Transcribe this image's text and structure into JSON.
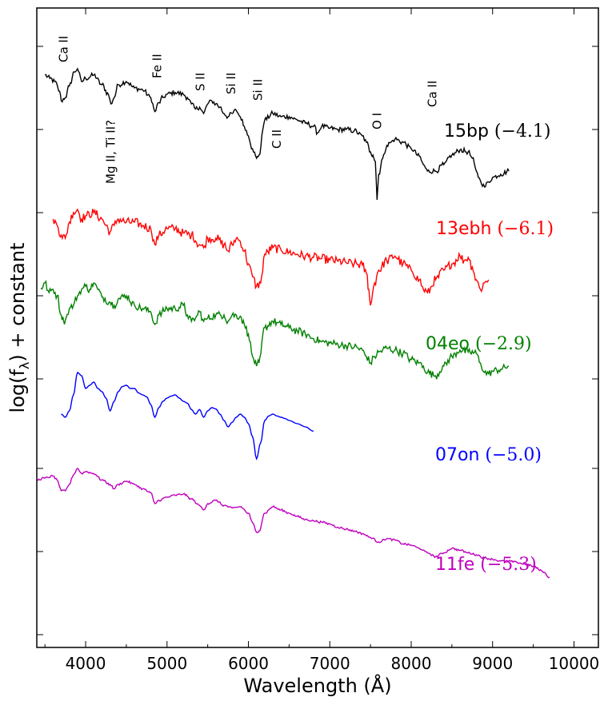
{
  "chart_data": {
    "type": "line",
    "title": "",
    "xlabel": "Wavelength (Å)",
    "ylabel": "log(f",
    "ylabel_sub": "λ",
    "ylabel_suffix": ") + constant",
    "xlim": [
      3400,
      10300
    ],
    "ylim": [
      0,
      1
    ],
    "y_ticks_labeled": false,
    "x_ticks": [
      {
        "value": 4000,
        "label": "4000"
      },
      {
        "value": 5000,
        "label": "5000"
      },
      {
        "value": 6000,
        "label": "6000"
      },
      {
        "value": 7000,
        "label": "7000"
      },
      {
        "value": 8000,
        "label": "8000"
      },
      {
        "value": 9000,
        "label": "9000"
      },
      {
        "value": 10000,
        "label": "10000"
      }
    ],
    "y_ticks": [
      0.02,
      0.15,
      0.28,
      0.42,
      0.55,
      0.68,
      0.81,
      0.94
    ],
    "series": [
      {
        "name": "15bp",
        "epoch": "(−4.1)",
        "color": "#000000",
        "x": [
          3500,
          3560,
          3620,
          3680,
          3700,
          3750,
          3800,
          3860,
          3900,
          3950,
          4000,
          4100,
          4200,
          4280,
          4310,
          4350,
          4400,
          4500,
          4600,
          4700,
          4800,
          4850,
          4900,
          4950,
          5000,
          5100,
          5200,
          5250,
          5300,
          5350,
          5400,
          5450,
          5500,
          5550,
          5600,
          5650,
          5700,
          5750,
          5800,
          5850,
          5900,
          5950,
          6000,
          6050,
          6100,
          6130,
          6200,
          6300,
          6400,
          6500,
          6600,
          6700,
          6800,
          6850,
          6900,
          7000,
          7100,
          7200,
          7300,
          7400,
          7450,
          7500,
          7530,
          7560,
          7580,
          7600,
          7650,
          7700,
          7750,
          7800,
          7900,
          8000,
          8100,
          8150,
          8200,
          8300,
          8400,
          8500,
          8600,
          8700,
          8750,
          8800,
          8850,
          8900,
          8950,
          9000,
          9100,
          9200
        ],
        "y": [
          0.895,
          0.89,
          0.885,
          0.87,
          0.855,
          0.86,
          0.878,
          0.9,
          0.905,
          0.885,
          0.89,
          0.895,
          0.88,
          0.865,
          0.85,
          0.86,
          0.88,
          0.885,
          0.875,
          0.872,
          0.86,
          0.838,
          0.852,
          0.86,
          0.865,
          0.868,
          0.865,
          0.86,
          0.85,
          0.842,
          0.845,
          0.835,
          0.85,
          0.855,
          0.85,
          0.845,
          0.835,
          0.83,
          0.835,
          0.84,
          0.83,
          0.815,
          0.8,
          0.78,
          0.765,
          0.77,
          0.825,
          0.835,
          0.83,
          0.83,
          0.825,
          0.82,
          0.815,
          0.805,
          0.815,
          0.812,
          0.81,
          0.81,
          0.808,
          0.8,
          0.79,
          0.775,
          0.77,
          0.76,
          0.7,
          0.74,
          0.765,
          0.785,
          0.79,
          0.795,
          0.79,
          0.78,
          0.768,
          0.755,
          0.745,
          0.745,
          0.755,
          0.77,
          0.778,
          0.775,
          0.765,
          0.745,
          0.73,
          0.72,
          0.728,
          0.735,
          0.74,
          0.745
        ]
      },
      {
        "name": "13ebh",
        "epoch": "(−6.1)",
        "color": "#ff0000",
        "x": [
          3600,
          3650,
          3700,
          3750,
          3800,
          3850,
          3900,
          3950,
          4000,
          4100,
          4200,
          4250,
          4300,
          4350,
          4400,
          4500,
          4600,
          4700,
          4800,
          4850,
          4900,
          5000,
          5100,
          5200,
          5300,
          5400,
          5450,
          5500,
          5600,
          5700,
          5750,
          5800,
          5850,
          5900,
          5950,
          6000,
          6050,
          6100,
          6150,
          6200,
          6300,
          6400,
          6500,
          6600,
          6700,
          6800,
          6900,
          7000,
          7100,
          7200,
          7300,
          7400,
          7450,
          7480,
          7500,
          7550,
          7600,
          7700,
          7800,
          7900,
          8000,
          8100,
          8150,
          8200,
          8300,
          8400,
          8500,
          8600,
          8650,
          8700,
          8750,
          8800,
          8850,
          8900,
          8950
        ],
        "y": [
          0.67,
          0.66,
          0.645,
          0.64,
          0.665,
          0.68,
          0.685,
          0.67,
          0.675,
          0.68,
          0.67,
          0.66,
          0.65,
          0.66,
          0.67,
          0.665,
          0.665,
          0.66,
          0.655,
          0.63,
          0.645,
          0.655,
          0.655,
          0.648,
          0.645,
          0.63,
          0.625,
          0.64,
          0.64,
          0.63,
          0.62,
          0.63,
          0.64,
          0.635,
          0.62,
          0.6,
          0.58,
          0.565,
          0.57,
          0.615,
          0.625,
          0.622,
          0.618,
          0.615,
          0.612,
          0.61,
          0.608,
          0.606,
          0.604,
          0.602,
          0.6,
          0.598,
          0.585,
          0.56,
          0.535,
          0.57,
          0.59,
          0.605,
          0.612,
          0.6,
          0.59,
          0.575,
          0.56,
          0.555,
          0.575,
          0.59,
          0.6,
          0.612,
          0.605,
          0.61,
          0.595,
          0.575,
          0.56,
          0.57,
          0.575
        ]
      },
      {
        "name": "04eo",
        "epoch": "(−2.9)",
        "color": "#008000",
        "x": [
          3450,
          3500,
          3550,
          3600,
          3650,
          3700,
          3730,
          3760,
          3800,
          3850,
          3900,
          3950,
          4000,
          4050,
          4100,
          4150,
          4200,
          4300,
          4350,
          4400,
          4500,
          4600,
          4700,
          4800,
          4850,
          4900,
          5000,
          5100,
          5200,
          5250,
          5300,
          5350,
          5400,
          5450,
          5500,
          5600,
          5700,
          5750,
          5800,
          5900,
          5950,
          6000,
          6050,
          6100,
          6130,
          6200,
          6300,
          6400,
          6500,
          6600,
          6700,
          6800,
          6900,
          7000,
          7100,
          7200,
          7300,
          7400,
          7450,
          7500,
          7550,
          7600,
          7700,
          7800,
          7900,
          8000,
          8100,
          8150,
          8200,
          8300,
          8400,
          8500,
          8600,
          8700,
          8800,
          8850,
          8900,
          8950,
          9000,
          9100,
          9200
        ],
        "y": [
          0.562,
          0.57,
          0.555,
          0.56,
          0.55,
          0.52,
          0.51,
          0.515,
          0.53,
          0.535,
          0.55,
          0.56,
          0.565,
          0.56,
          0.57,
          0.56,
          0.548,
          0.54,
          0.535,
          0.545,
          0.55,
          0.535,
          0.53,
          0.525,
          0.505,
          0.52,
          0.53,
          0.53,
          0.535,
          0.52,
          0.51,
          0.515,
          0.525,
          0.51,
          0.515,
          0.52,
          0.52,
          0.51,
          0.52,
          0.518,
          0.505,
          0.49,
          0.455,
          0.44,
          0.445,
          0.5,
          0.51,
          0.505,
          0.5,
          0.495,
          0.49,
          0.483,
          0.478,
          0.476,
          0.474,
          0.472,
          0.47,
          0.465,
          0.455,
          0.445,
          0.455,
          0.462,
          0.468,
          0.465,
          0.46,
          0.45,
          0.445,
          0.44,
          0.43,
          0.425,
          0.44,
          0.455,
          0.465,
          0.462,
          0.46,
          0.445,
          0.43,
          0.428,
          0.432,
          0.435,
          0.44
        ]
      },
      {
        "name": "07on",
        "epoch": "(−5.0)",
        "color": "#0000ff",
        "x": [
          3700,
          3750,
          3800,
          3850,
          3900,
          3950,
          4000,
          4050,
          4100,
          4150,
          4200,
          4250,
          4300,
          4350,
          4400,
          4450,
          4500,
          4550,
          4600,
          4650,
          4700,
          4750,
          4800,
          4850,
          4900,
          4950,
          5000,
          5050,
          5100,
          5150,
          5200,
          5250,
          5300,
          5350,
          5400,
          5450,
          5500,
          5550,
          5600,
          5650,
          5700,
          5750,
          5800,
          5850,
          5900,
          5950,
          6000,
          6050,
          6100,
          6150,
          6200,
          6250,
          6300,
          6350,
          6400,
          6450,
          6500,
          6600,
          6700,
          6800
        ],
        "y": [
          0.365,
          0.36,
          0.37,
          0.395,
          0.43,
          0.425,
          0.405,
          0.41,
          0.415,
          0.405,
          0.4,
          0.39,
          0.37,
          0.385,
          0.4,
          0.408,
          0.41,
          0.405,
          0.405,
          0.398,
          0.395,
          0.392,
          0.38,
          0.36,
          0.375,
          0.385,
          0.39,
          0.393,
          0.395,
          0.39,
          0.385,
          0.382,
          0.372,
          0.365,
          0.372,
          0.36,
          0.37,
          0.375,
          0.373,
          0.365,
          0.355,
          0.345,
          0.352,
          0.36,
          0.365,
          0.36,
          0.35,
          0.33,
          0.295,
          0.32,
          0.355,
          0.362,
          0.365,
          0.362,
          0.36,
          0.358,
          0.355,
          0.35,
          0.345,
          0.338
        ]
      },
      {
        "name": "11fe",
        "epoch": "(−5.3)",
        "color": "#bf00bf",
        "x": [
          3400,
          3500,
          3600,
          3650,
          3700,
          3750,
          3800,
          3850,
          3900,
          3950,
          4000,
          4100,
          4200,
          4300,
          4350,
          4400,
          4500,
          4600,
          4700,
          4800,
          4850,
          4900,
          5000,
          5100,
          5200,
          5300,
          5400,
          5450,
          5500,
          5600,
          5700,
          5800,
          5900,
          6000,
          6050,
          6100,
          6130,
          6200,
          6300,
          6400,
          6500,
          6600,
          6700,
          6800,
          6900,
          7000,
          7100,
          7200,
          7300,
          7400,
          7500,
          7600,
          7700,
          7800,
          7900,
          8000,
          8100,
          8200,
          8300,
          8400,
          8500,
          8600,
          8700,
          8800,
          8900,
          9000,
          9100,
          9200,
          9300,
          9400,
          9500,
          9600,
          9700
        ],
        "y": [
          0.262,
          0.265,
          0.268,
          0.262,
          0.245,
          0.245,
          0.255,
          0.27,
          0.28,
          0.272,
          0.275,
          0.272,
          0.262,
          0.255,
          0.248,
          0.255,
          0.26,
          0.255,
          0.248,
          0.242,
          0.225,
          0.23,
          0.235,
          0.238,
          0.24,
          0.232,
          0.222,
          0.215,
          0.225,
          0.23,
          0.222,
          0.218,
          0.22,
          0.21,
          0.195,
          0.18,
          0.182,
          0.21,
          0.22,
          0.215,
          0.21,
          0.205,
          0.2,
          0.198,
          0.196,
          0.193,
          0.188,
          0.185,
          0.182,
          0.178,
          0.172,
          0.165,
          0.17,
          0.168,
          0.162,
          0.16,
          0.155,
          0.148,
          0.142,
          0.148,
          0.155,
          0.152,
          0.148,
          0.145,
          0.14,
          0.138,
          0.135,
          0.135,
          0.133,
          0.13,
          0.127,
          0.12,
          0.11
        ]
      }
    ],
    "annotations": [
      {
        "text": "Ca II",
        "x": 3730,
        "y": 0.915
      },
      {
        "text": "Mg II, Ti II?",
        "x": 4310,
        "y": 0.725
      },
      {
        "text": "Fe II",
        "x": 4880,
        "y": 0.89
      },
      {
        "text": "S II",
        "x": 5410,
        "y": 0.87
      },
      {
        "text": "Si II",
        "x": 5790,
        "y": 0.865
      },
      {
        "text": "Si II",
        "x": 6120,
        "y": 0.855
      },
      {
        "text": "C II",
        "x": 6350,
        "y": 0.78
      },
      {
        "text": "O I",
        "x": 7580,
        "y": 0.81
      },
      {
        "text": "Ca II",
        "x": 8260,
        "y": 0.845
      }
    ]
  }
}
